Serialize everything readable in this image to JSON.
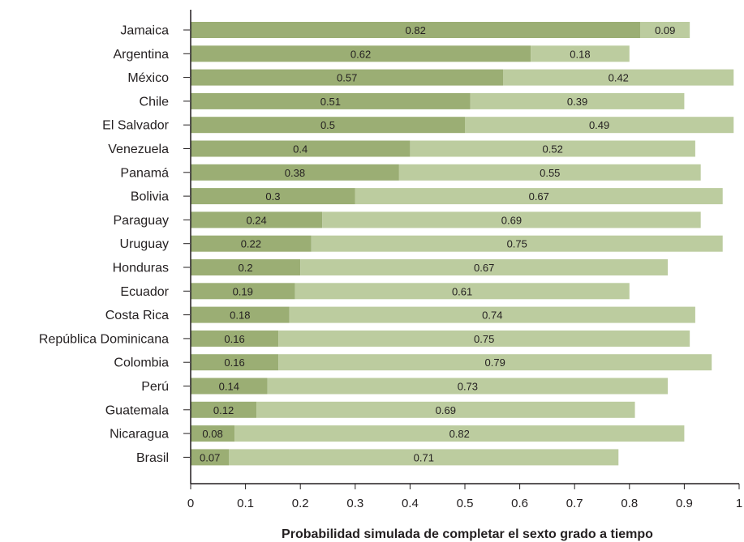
{
  "chart_data": {
    "type": "bar",
    "orientation": "horizontal",
    "stacked": true,
    "title": "",
    "xlabel": "Probabilidad simulada de completar el sexto grado a tiempo",
    "ylabel": "",
    "xlim": [
      0,
      1
    ],
    "xticks": [
      "0",
      "0.1",
      "0.2",
      "0.3",
      "0.4",
      "0.5",
      "0.6",
      "0.7",
      "0.8",
      "0.9",
      "1"
    ],
    "grid": false,
    "legend": "none",
    "categories": [
      "Jamaica",
      "Argentina",
      "México",
      "Chile",
      "El Salvador",
      "Venezuela",
      "Panamá",
      "Bolivia",
      "Paraguay",
      "Uruguay",
      "Honduras",
      "Ecuador",
      "Costa Rica",
      "República Dominicana",
      "Colombia",
      "Perú",
      "Guatemala",
      "Nicaragua",
      "Brasil"
    ],
    "series": [
      {
        "color": "#9bae74",
        "values": [
          0.82,
          0.62,
          0.57,
          0.51,
          0.5,
          0.4,
          0.38,
          0.3,
          0.24,
          0.22,
          0.2,
          0.19,
          0.18,
          0.16,
          0.16,
          0.14,
          0.12,
          0.08,
          0.07
        ]
      },
      {
        "color": "#bccc9f",
        "values": [
          0.09,
          0.18,
          0.42,
          0.39,
          0.49,
          0.52,
          0.55,
          0.67,
          0.69,
          0.75,
          0.67,
          0.61,
          0.74,
          0.75,
          0.79,
          0.73,
          0.69,
          0.82,
          0.71
        ]
      }
    ]
  }
}
